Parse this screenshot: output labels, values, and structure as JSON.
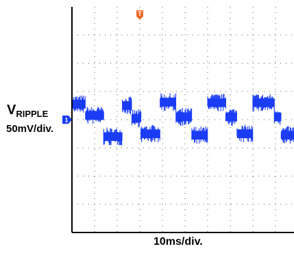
{
  "chart_data": {
    "type": "line",
    "title": "",
    "xlabel": "10ms/div.",
    "ylabel": "VRIPPLE 50mV/div.",
    "channel": {
      "name": "V",
      "subscript": "RIPPLE",
      "scale": "50mV/div.",
      "marker": "1",
      "color": "#1a3cf5"
    },
    "trigger_marker": {
      "label": "T",
      "color": "#f26a2a"
    },
    "grid": true,
    "grid_style": "dotted",
    "x_divisions": 10,
    "y_divisions": 8,
    "xlim": [
      0,
      10
    ],
    "ylim": [
      -4,
      4
    ],
    "trigger_x_div": 3,
    "channel_ground_div": 0,
    "series": [
      {
        "values_description_unit": "divisions",
        "segments": [
          {
            "x0": 0.0,
            "x1": 0.6,
            "level": 0.55
          },
          {
            "x0": 0.6,
            "x1": 1.4,
            "level": 0.15
          },
          {
            "x0": 1.4,
            "x1": 2.23,
            "level": -0.6
          },
          {
            "x0": 2.23,
            "x1": 2.65,
            "level": 0.5
          },
          {
            "x0": 2.65,
            "x1": 3.05,
            "level": 0.05
          },
          {
            "x0": 3.05,
            "x1": 3.9,
            "level": -0.5
          },
          {
            "x0": 3.9,
            "x1": 4.6,
            "level": 0.62
          },
          {
            "x0": 4.6,
            "x1": 5.3,
            "level": 0.1
          },
          {
            "x0": 5.3,
            "x1": 6.0,
            "level": -0.55
          },
          {
            "x0": 6.0,
            "x1": 6.8,
            "level": 0.6
          },
          {
            "x0": 6.8,
            "x1": 7.3,
            "level": 0.1
          },
          {
            "x0": 7.3,
            "x1": 8.0,
            "level": -0.5
          },
          {
            "x0": 8.0,
            "x1": 8.95,
            "level": 0.6
          },
          {
            "x0": 8.95,
            "x1": 9.25,
            "level": 0.1
          },
          {
            "x0": 9.25,
            "x1": 10.0,
            "level": -0.55
          }
        ],
        "noise_amplitude_div": 0.28
      }
    ]
  }
}
